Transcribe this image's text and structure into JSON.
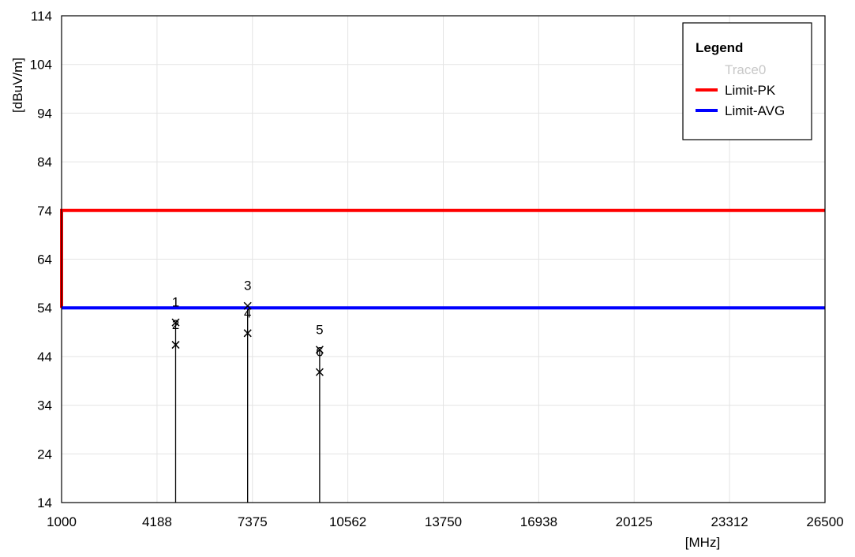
{
  "chart_data": {
    "type": "line",
    "xlabel": "[MHz]",
    "ylabel": "[dBuV/m]",
    "xlim": [
      1000,
      26500
    ],
    "ylim": [
      14,
      114
    ],
    "x_ticks": [
      "1000",
      "4188",
      "7375",
      "10562",
      "13750",
      "16938",
      "20125",
      "23312",
      "26500"
    ],
    "y_ticks": [
      "114",
      "104",
      "94",
      "84",
      "74",
      "64",
      "54",
      "44",
      "34",
      "24",
      "14"
    ],
    "grid": true,
    "legend": {
      "title": "Legend",
      "position": "top-right",
      "entries": [
        {
          "name": "Trace0",
          "color": "#c8c8c8",
          "swatch": false
        },
        {
          "name": "Limit-PK",
          "color": "#ff0000",
          "swatch": true
        },
        {
          "name": "Limit-AVG",
          "color": "#0000ff",
          "swatch": true
        }
      ]
    },
    "series": [
      {
        "name": "Limit-PK",
        "color": "#ff0000",
        "x": [
          1000,
          1000,
          26500
        ],
        "y": [
          54,
          74,
          74
        ]
      },
      {
        "name": "Limit-AVG",
        "color": "#0000ff",
        "x": [
          1000,
          26500
        ],
        "y": [
          54,
          54
        ]
      }
    ],
    "markers": [
      {
        "label": "1",
        "x": 4810,
        "y": 51.0
      },
      {
        "label": "2",
        "x": 4810,
        "y": 46.4
      },
      {
        "label": "3",
        "x": 7215,
        "y": 54.4
      },
      {
        "label": "4",
        "x": 7215,
        "y": 48.8
      },
      {
        "label": "5",
        "x": 9620,
        "y": 45.4
      },
      {
        "label": "6",
        "x": 9620,
        "y": 40.8
      }
    ]
  }
}
